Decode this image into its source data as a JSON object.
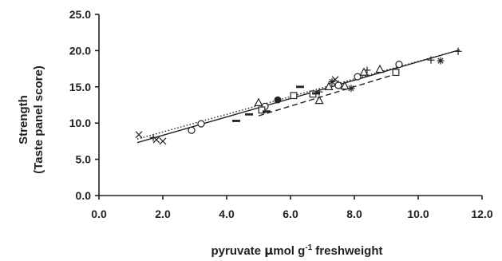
{
  "chart_data": {
    "type": "scatter",
    "xlabel": {
      "main": "pyruvate ",
      "mu": "μ",
      "unit": "mol g",
      "sup": "-1",
      "tail": " freshweight"
    },
    "ylabel": {
      "line1": "Strength",
      "line2": "(Taste panel score)"
    },
    "xlim": [
      0,
      12
    ],
    "ylim": [
      0,
      25
    ],
    "x_ticks": [
      "0.0",
      "2.0",
      "4.0",
      "6.0",
      "8.0",
      "10.0",
      "12.0"
    ],
    "y_ticks": [
      "0.0",
      "5.0",
      "10.0",
      "15.0",
      "20.0",
      "25.0"
    ],
    "grid": false,
    "legend": "none",
    "series": [
      {
        "marker": "x-mark",
        "points": [
          [
            1.25,
            8.4
          ],
          [
            1.8,
            7.7
          ],
          [
            2.0,
            7.5
          ],
          [
            7.4,
            16.0
          ]
        ]
      },
      {
        "marker": "plus",
        "points": [
          [
            10.4,
            18.7
          ],
          [
            11.25,
            19.9
          ],
          [
            8.4,
            17.3
          ],
          [
            7.5,
            15.4
          ],
          [
            6.9,
            14.3
          ],
          [
            1.7,
            8.0
          ]
        ]
      },
      {
        "marker": "circle-open",
        "points": [
          [
            2.9,
            9.0
          ],
          [
            3.2,
            9.9
          ],
          [
            5.2,
            12.3
          ],
          [
            7.5,
            15.2
          ],
          [
            8.1,
            16.4
          ],
          [
            9.4,
            18.1
          ]
        ]
      },
      {
        "marker": "triangle-open",
        "points": [
          [
            5.0,
            12.8
          ],
          [
            6.9,
            13.1
          ],
          [
            7.2,
            15.0
          ],
          [
            7.7,
            15.1
          ],
          [
            8.3,
            17.0
          ],
          [
            8.8,
            17.4
          ]
        ]
      },
      {
        "marker": "square-open",
        "points": [
          [
            5.1,
            11.8
          ],
          [
            6.1,
            13.8
          ],
          [
            6.7,
            14.0
          ],
          [
            9.3,
            17.0
          ]
        ]
      },
      {
        "marker": "circle-filled",
        "points": [
          [
            5.6,
            13.2
          ]
        ]
      },
      {
        "marker": "dash",
        "points": [
          [
            4.3,
            10.3
          ],
          [
            4.7,
            11.2
          ],
          [
            5.25,
            11.6
          ],
          [
            6.3,
            15.0
          ],
          [
            6.8,
            14.1
          ]
        ]
      },
      {
        "marker": "asterisk",
        "points": [
          [
            7.9,
            14.8
          ],
          [
            10.7,
            18.6
          ],
          [
            7.3,
            15.7
          ]
        ]
      }
    ],
    "fit_lines": [
      {
        "style": "solid",
        "color": "#222222",
        "from": [
          1.2,
          7.3
        ],
        "to": [
          11.3,
          20.1
        ]
      },
      {
        "style": "dotted",
        "color": "#222222",
        "from": [
          1.2,
          7.8
        ],
        "to": [
          11.3,
          20.1
        ]
      },
      {
        "style": "dashed",
        "color": "#222222",
        "from": [
          5.0,
          11.0
        ],
        "to": [
          9.4,
          16.9
        ]
      }
    ],
    "marker_color": "#222222"
  }
}
